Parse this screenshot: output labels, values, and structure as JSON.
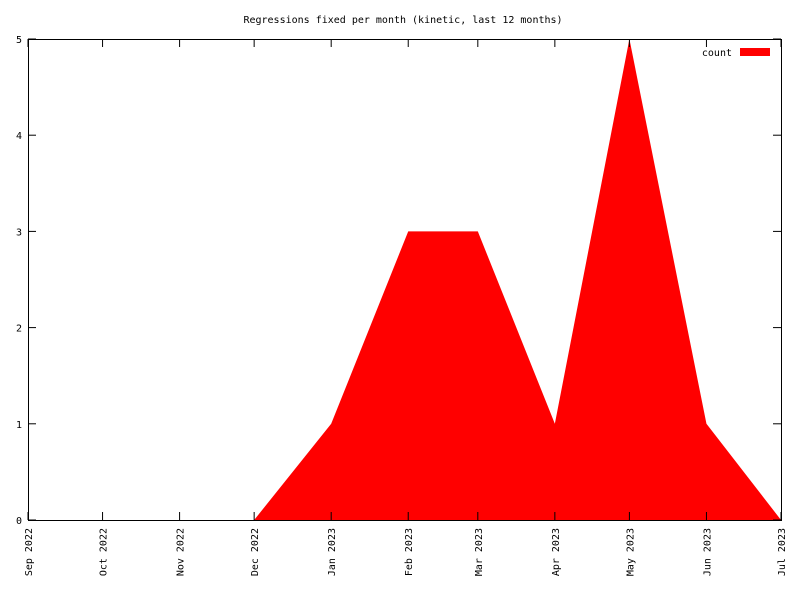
{
  "chart_data": {
    "type": "area",
    "title": "Regressions fixed per month (kinetic, last 12 months)",
    "x": [
      "Dec 2022",
      "Jan 2023",
      "Feb 2023",
      "Mar 2023",
      "Apr 2023",
      "May 2023",
      "Jun 2023",
      "Jul 2023"
    ],
    "series": [
      {
        "name": "count",
        "color": "#ff0000",
        "values": [
          0,
          1,
          3,
          3,
          1,
          5,
          1,
          0
        ]
      }
    ],
    "xlim": [
      "Sep 2022",
      "Jul 2023"
    ],
    "xticks": [
      "Sep 2022",
      "Oct 2022",
      "Nov 2022",
      "Dec 2022",
      "Jan 2023",
      "Feb 2023",
      "Mar 2023",
      "Apr 2023",
      "May 2023",
      "Jun 2023",
      "Jul 2023"
    ],
    "ylim": [
      0,
      5
    ],
    "yticks": [
      0,
      1,
      2,
      3,
      4,
      5
    ],
    "grid": false,
    "legend": "top-right"
  }
}
